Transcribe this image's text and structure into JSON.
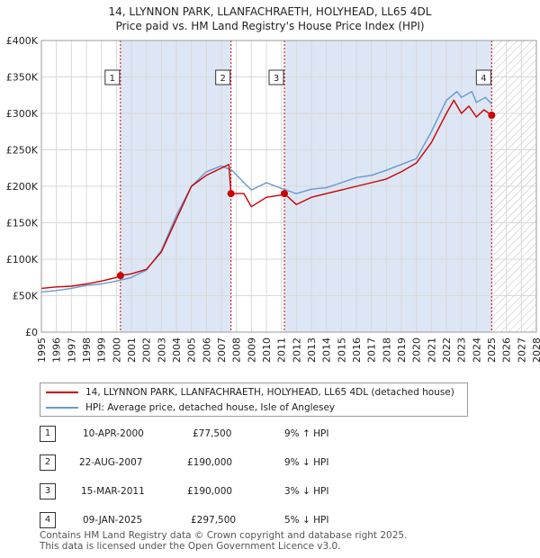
{
  "title_line1": "14, LLYNNON PARK, LLANFACHRAETH, HOLYHEAD, LL65 4DL",
  "title_line2": "Price paid vs. HM Land Registry's House Price Index (HPI)",
  "colors": {
    "property": "#cc0000",
    "hpi": "#6699cc",
    "shade": "#dde6f5",
    "marker_line": "#cc0000"
  },
  "chart_data": {
    "type": "line",
    "xlim": [
      1995,
      2028
    ],
    "ylim": [
      0,
      400000
    ],
    "x_ticks": [
      "1995",
      "1996",
      "1997",
      "1998",
      "1999",
      "2000",
      "2001",
      "2002",
      "2003",
      "2004",
      "2005",
      "2006",
      "2007",
      "2008",
      "2009",
      "2010",
      "2011",
      "2012",
      "2013",
      "2014",
      "2015",
      "2016",
      "2017",
      "2018",
      "2019",
      "2020",
      "2021",
      "2022",
      "2023",
      "2024",
      "2025",
      "2026",
      "2027",
      "2028"
    ],
    "y_ticks": [
      {
        "value": 0,
        "label": "£0"
      },
      {
        "value": 50000,
        "label": "£50K"
      },
      {
        "value": 100000,
        "label": "£100K"
      },
      {
        "value": 150000,
        "label": "£150K"
      },
      {
        "value": 200000,
        "label": "£200K"
      },
      {
        "value": 250000,
        "label": "£250K"
      },
      {
        "value": 300000,
        "label": "£300K"
      },
      {
        "value": 350000,
        "label": "£350K"
      },
      {
        "value": 400000,
        "label": "£400K"
      }
    ],
    "shaded_ranges": [
      [
        2000.27,
        2007.64
      ],
      [
        2011.2,
        2025.02
      ]
    ],
    "hatched_from": 2025.1,
    "series": [
      {
        "name": "14, LLYNNON PARK, LLANFACHRAETH, HOLYHEAD, LL65 4DL (detached house)",
        "color": "#cc0000",
        "points": [
          [
            1995,
            60000
          ],
          [
            1996,
            62000
          ],
          [
            1997,
            63000
          ],
          [
            1998,
            66000
          ],
          [
            1999,
            70000
          ],
          [
            2000,
            75000
          ],
          [
            2000.27,
            77500
          ],
          [
            2001,
            80000
          ],
          [
            2002,
            86000
          ],
          [
            2003,
            110000
          ],
          [
            2004,
            155000
          ],
          [
            2005,
            200000
          ],
          [
            2006,
            215000
          ],
          [
            2007,
            225000
          ],
          [
            2007.5,
            230000
          ],
          [
            2007.64,
            190000
          ],
          [
            2008.5,
            190000
          ],
          [
            2009,
            172000
          ],
          [
            2010,
            185000
          ],
          [
            2011,
            188000
          ],
          [
            2011.2,
            190000
          ],
          [
            2012,
            175000
          ],
          [
            2013,
            185000
          ],
          [
            2014,
            190000
          ],
          [
            2015,
            195000
          ],
          [
            2016,
            200000
          ],
          [
            2017,
            205000
          ],
          [
            2018,
            210000
          ],
          [
            2019,
            220000
          ],
          [
            2020,
            232000
          ],
          [
            2021,
            260000
          ],
          [
            2022,
            300000
          ],
          [
            2022.5,
            318000
          ],
          [
            2023,
            300000
          ],
          [
            2023.5,
            310000
          ],
          [
            2024,
            295000
          ],
          [
            2024.5,
            305000
          ],
          [
            2025.02,
            297500
          ]
        ]
      },
      {
        "name": "HPI: Average price, detached house, Isle of Anglesey",
        "color": "#6699cc",
        "points": [
          [
            1995,
            55000
          ],
          [
            1996,
            57000
          ],
          [
            1997,
            60000
          ],
          [
            1998,
            64000
          ],
          [
            1999,
            66000
          ],
          [
            2000,
            70000
          ],
          [
            2001,
            75000
          ],
          [
            2002,
            85000
          ],
          [
            2003,
            112000
          ],
          [
            2004,
            160000
          ],
          [
            2005,
            200000
          ],
          [
            2006,
            220000
          ],
          [
            2007,
            228000
          ],
          [
            2007.7,
            222000
          ],
          [
            2008.5,
            205000
          ],
          [
            2009,
            195000
          ],
          [
            2010,
            205000
          ],
          [
            2011,
            197000
          ],
          [
            2012,
            190000
          ],
          [
            2013,
            196000
          ],
          [
            2014,
            198000
          ],
          [
            2015,
            205000
          ],
          [
            2016,
            212000
          ],
          [
            2017,
            215000
          ],
          [
            2018,
            222000
          ],
          [
            2019,
            230000
          ],
          [
            2020,
            238000
          ],
          [
            2021,
            275000
          ],
          [
            2022,
            318000
          ],
          [
            2022.7,
            330000
          ],
          [
            2023,
            322000
          ],
          [
            2023.7,
            330000
          ],
          [
            2024,
            315000
          ],
          [
            2024.6,
            322000
          ],
          [
            2025.02,
            313000
          ]
        ]
      }
    ],
    "sale_markers": [
      {
        "n": "1",
        "x": 2000.27,
        "y": 77500
      },
      {
        "n": "2",
        "x": 2007.64,
        "y": 190000
      },
      {
        "n": "3",
        "x": 2011.2,
        "y": 190000
      },
      {
        "n": "4",
        "x": 2025.02,
        "y": 297500
      }
    ]
  },
  "legend": {
    "property_label": "14, LLYNNON PARK, LLANFACHRAETH, HOLYHEAD, LL65 4DL (detached house)",
    "hpi_label": "HPI: Average price, detached house, Isle of Anglesey"
  },
  "sales": [
    {
      "n": "1",
      "date": "10-APR-2000",
      "price": "£77,500",
      "hpi": "9% ↑ HPI"
    },
    {
      "n": "2",
      "date": "22-AUG-2007",
      "price": "£190,000",
      "hpi": "9% ↓ HPI"
    },
    {
      "n": "3",
      "date": "15-MAR-2011",
      "price": "£190,000",
      "hpi": "3% ↓ HPI"
    },
    {
      "n": "4",
      "date": "09-JAN-2025",
      "price": "£297,500",
      "hpi": "5% ↓ HPI"
    }
  ],
  "footer_line1": "Contains HM Land Registry data © Crown copyright and database right 2025.",
  "footer_line2": "This data is licensed under the Open Government Licence v3.0."
}
